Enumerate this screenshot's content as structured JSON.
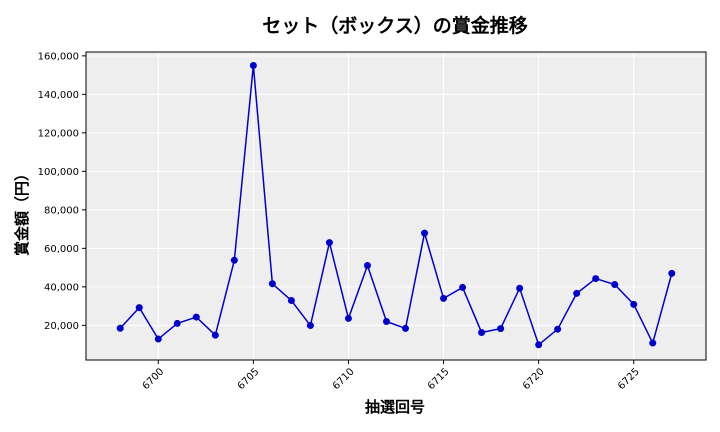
{
  "chart_data": {
    "type": "line",
    "title": "セット（ボックス）の賞金推移",
    "xlabel": "抽選回号",
    "ylabel": "賞金額（円）",
    "xlim": [
      6696.2,
      6728.8
    ],
    "ylim": [
      2000,
      162000
    ],
    "x_ticks": [
      6700,
      6705,
      6710,
      6715,
      6720,
      6725
    ],
    "x_tick_labels": [
      "6700",
      "6705",
      "6710",
      "6715",
      "6720",
      "6725"
    ],
    "y_ticks": [
      20000,
      40000,
      60000,
      80000,
      100000,
      120000,
      140000,
      160000
    ],
    "y_tick_labels": [
      "20,000",
      "40,000",
      "60,000",
      "80,000",
      "100,000",
      "120,000",
      "140,000",
      "160,000"
    ],
    "grid": true,
    "series": [
      {
        "color": "#0000cc",
        "x": [
          6698,
          6699,
          6700,
          6701,
          6702,
          6703,
          6704,
          6705,
          6706,
          6707,
          6708,
          6709,
          6710,
          6711,
          6712,
          6713,
          6714,
          6715,
          6716,
          6717,
          6718,
          6719,
          6720,
          6721,
          6722,
          6723,
          6724,
          6725,
          6726,
          6727
        ],
        "values": [
          18500,
          29200,
          12900,
          21000,
          24300,
          14900,
          53800,
          155000,
          41600,
          32900,
          19900,
          63000,
          23600,
          51100,
          22000,
          18400,
          67900,
          34000,
          39700,
          16300,
          18300,
          39300,
          9900,
          18000,
          36600,
          44300,
          41200,
          30900,
          10800,
          47000
        ]
      }
    ]
  }
}
